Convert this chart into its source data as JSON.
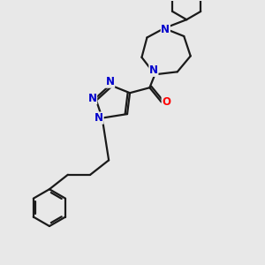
{
  "background_color": "#e8e8e8",
  "bond_color": "#1a1a1a",
  "nitrogen_color": "#0000cd",
  "oxygen_color": "#ff0000",
  "line_width": 1.6,
  "font_size_atom": 8.5,
  "fig_width": 3.0,
  "fig_height": 3.0,
  "dpi": 100,
  "xlim": [
    0,
    10
  ],
  "ylim": [
    0,
    10
  ]
}
